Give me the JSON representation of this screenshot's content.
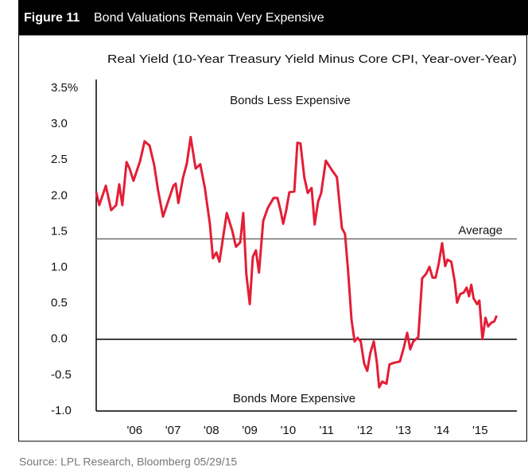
{
  "chart_data": {
    "type": "line",
    "figure_label": "Figure 11",
    "title": "Bond Valuations Remain Very Expensive",
    "subtitle": "Real Yield (10-Year Treasury Yield Minus Core CPI, Year-over-Year)",
    "source": "Source: LPL Research, Bloomberg   05/29/15",
    "annotations": [
      "Bonds Less Expensive",
      "Bonds More Expensive"
    ],
    "average": 1.4,
    "average_label": "Average",
    "color": "#e31e36",
    "average_color": "#6d6d6d",
    "grid": false,
    "xlim": [
      2005,
      2015.75
    ],
    "xticks": [
      {
        "value": 2006,
        "label": "'06"
      },
      {
        "value": 2007,
        "label": "'07"
      },
      {
        "value": 2008,
        "label": "'08"
      },
      {
        "value": 2009,
        "label": "'09"
      },
      {
        "value": 2010,
        "label": "'10"
      },
      {
        "value": 2011,
        "label": "'11"
      },
      {
        "value": 2012,
        "label": "'12"
      },
      {
        "value": 2013,
        "label": "'13"
      },
      {
        "value": 2014,
        "label": "'14"
      },
      {
        "value": 2015,
        "label": "'15"
      }
    ],
    "ylim": [
      -1,
      3.5
    ],
    "yticks": [
      {
        "value": 3.5,
        "label": "3.5%"
      },
      {
        "value": 3,
        "label": "3.0"
      },
      2.5,
      {
        "value": 2,
        "label": "2.0"
      },
      1.5,
      {
        "value": 1,
        "label": "1.0"
      },
      0.5,
      {
        "value": 0,
        "label": "0.0"
      },
      -0.5,
      {
        "value": -1,
        "label": "-1.0"
      }
    ],
    "x": [
      2005.0,
      2005.08,
      2005.25,
      2005.39,
      2005.52,
      2005.6,
      2005.68,
      2005.79,
      2005.87,
      2005.97,
      2006.14,
      2006.26,
      2006.39,
      2006.51,
      2006.61,
      2006.74,
      2006.84,
      2007.01,
      2007.07,
      2007.14,
      2007.26,
      2007.36,
      2007.46,
      2007.59,
      2007.71,
      2007.83,
      2007.96,
      2008.04,
      2008.13,
      2008.21,
      2008.4,
      2008.54,
      2008.64,
      2008.75,
      2008.83,
      2008.91,
      2009.0,
      2009.08,
      2009.16,
      2009.24,
      2009.35,
      2009.47,
      2009.62,
      2009.72,
      2009.8,
      2009.87,
      2009.95,
      2010.03,
      2010.16,
      2010.24,
      2010.32,
      2010.42,
      2010.51,
      2010.61,
      2010.69,
      2010.78,
      2010.86,
      2010.98,
      2011.15,
      2011.27,
      2011.4,
      2011.48,
      2011.56,
      2011.65,
      2011.73,
      2011.81,
      2011.89,
      2011.98,
      2012.06,
      2012.14,
      2012.23,
      2012.31,
      2012.37,
      2012.45,
      2012.56,
      2012.64,
      2012.74,
      2012.91,
      2013.01,
      2013.1,
      2013.18,
      2013.26,
      2013.39,
      2013.49,
      2013.59,
      2013.68,
      2013.76,
      2013.84,
      2013.92,
      2014.01,
      2014.09,
      2014.15,
      2014.25,
      2014.34,
      2014.4,
      2014.48,
      2014.57,
      2014.65,
      2014.71,
      2014.77,
      2014.83,
      2014.92,
      2014.98,
      2015.06,
      2015.14,
      2015.21,
      2015.29,
      2015.37,
      2015.43
    ],
    "values": [
      2.05,
      1.87,
      2.14,
      1.8,
      1.87,
      2.16,
      1.87,
      2.47,
      2.38,
      2.21,
      2.48,
      2.76,
      2.7,
      2.43,
      2.08,
      1.71,
      1.87,
      2.14,
      2.17,
      1.9,
      2.25,
      2.45,
      2.82,
      2.38,
      2.44,
      2.11,
      1.61,
      1.13,
      1.21,
      1.08,
      1.76,
      1.52,
      1.29,
      1.35,
      1.76,
      0.91,
      0.49,
      1.15,
      1.24,
      0.93,
      1.65,
      1.83,
      1.97,
      1.97,
      1.8,
      1.61,
      1.8,
      2.05,
      2.06,
      2.74,
      2.73,
      2.26,
      2.04,
      2.11,
      1.6,
      1.92,
      2.04,
      2.49,
      2.35,
      2.26,
      1.55,
      1.47,
      0.96,
      0.27,
      -0.03,
      0.02,
      -0.03,
      -0.34,
      -0.44,
      -0.19,
      -0.03,
      -0.32,
      -0.67,
      -0.59,
      -0.62,
      -0.35,
      -0.33,
      -0.31,
      -0.12,
      0.09,
      -0.14,
      -0.03,
      0.03,
      0.85,
      0.91,
      1.01,
      0.86,
      0.86,
      1.05,
      1.34,
      1.02,
      1.11,
      1.08,
      0.8,
      0.51,
      0.63,
      0.65,
      0.72,
      0.6,
      0.76,
      0.57,
      0.49,
      0.54,
      0.0,
      0.3,
      0.18,
      0.23,
      0.25,
      0.33
    ]
  }
}
